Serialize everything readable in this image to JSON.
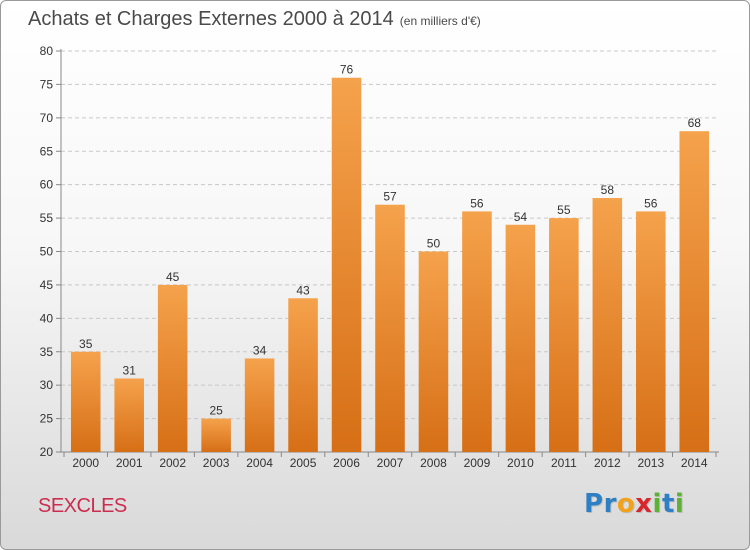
{
  "header": {
    "title": "Achats et Charges Externes 2000 à 2014",
    "subtitle": "(en milliers d'€)"
  },
  "footer": {
    "town": "SEXCLES",
    "logo_letters": [
      "P",
      "r",
      "o",
      "x",
      "i",
      "t",
      "i"
    ],
    "logo_colors": [
      "#2f7fc4",
      "#2f7fc4",
      "#f0a21d",
      "#d7262d",
      "#5db137",
      "#2f7fc4",
      "#5db137"
    ]
  },
  "chart_data": {
    "type": "bar",
    "title": "Achats et Charges Externes 2000 à 2014",
    "xlabel": "",
    "ylabel": "",
    "ylim": [
      20,
      80
    ],
    "ytick_step": 5,
    "grid": "horizontal",
    "bar_color_top": "#f5a24c",
    "bar_color_bottom": "#d66f16",
    "categories": [
      "2000",
      "2001",
      "2002",
      "2003",
      "2004",
      "2005",
      "2006",
      "2007",
      "2008",
      "2009",
      "2010",
      "2011",
      "2012",
      "2013",
      "2014"
    ],
    "values": [
      35,
      31,
      45,
      25,
      34,
      43,
      76,
      57,
      50,
      56,
      54,
      55,
      58,
      56,
      68
    ]
  }
}
